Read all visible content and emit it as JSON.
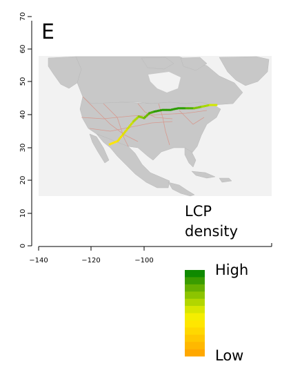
{
  "panel_label": "E",
  "map": {
    "y_ticks": [
      "0",
      "10",
      "20",
      "30",
      "40",
      "50",
      "60",
      "70"
    ],
    "x_ticks": [
      "−140",
      "−120",
      "−100"
    ],
    "background_color": "#f2f2f2",
    "land_color": "#c8c8c8",
    "path_color": "#2e8b2e",
    "path_points": [
      {
        "lon": -113,
        "lat": 31
      },
      {
        "lon": -110,
        "lat": 32
      },
      {
        "lon": -108,
        "lat": 34
      },
      {
        "lon": -106,
        "lat": 36
      },
      {
        "lon": -104,
        "lat": 38
      },
      {
        "lon": -102,
        "lat": 39.5
      },
      {
        "lon": -100,
        "lat": 39
      },
      {
        "lon": -98,
        "lat": 40.5
      },
      {
        "lon": -96,
        "lat": 41
      },
      {
        "lon": -93,
        "lat": 41.5
      },
      {
        "lon": -90,
        "lat": 41.5
      },
      {
        "lon": -87,
        "lat": 42
      },
      {
        "lon": -84,
        "lat": 42
      },
      {
        "lon": -81,
        "lat": 42
      },
      {
        "lon": -78,
        "lat": 42.5
      },
      {
        "lon": -75,
        "lat": 43
      },
      {
        "lon": -72,
        "lat": 43
      }
    ],
    "path_colors": [
      "#ffe600",
      "#f1e400",
      "#dfe000",
      "#cde000",
      "#b2d800",
      "#8cc800",
      "#6bb800",
      "#46a800",
      "#2e9a00",
      "#2b9a00",
      "#2b9c00",
      "#2e9e00",
      "#50b000",
      "#7cc400",
      "#a8d800",
      "#d2e800",
      "#f5f000"
    ]
  },
  "legend": {
    "title_line1": "LCP",
    "title_line2": "density",
    "high_label": "High",
    "low_label": "Low",
    "colors": [
      "#0f8a00",
      "#3a9c00",
      "#66b000",
      "#8cc400",
      "#b2d600",
      "#d8e600",
      "#f4ee00",
      "#ffe600",
      "#ffd800",
      "#ffc800",
      "#ffb800",
      "#ffa800"
    ]
  }
}
